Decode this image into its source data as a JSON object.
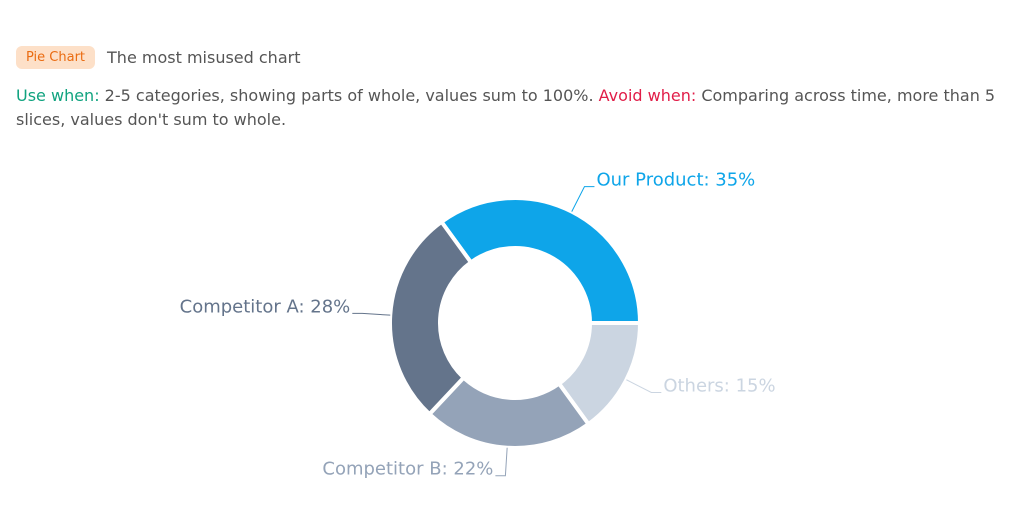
{
  "header": {
    "badge": "Pie Chart",
    "subtitle": "The most misused chart"
  },
  "description": {
    "use_label": "Use when:",
    "use_text": "2-5 categories, showing parts of whole, values sum to 100%.",
    "avoid_label": "Avoid when:",
    "avoid_text": "Comparing across time, more than 5 slices, values don't sum to whole."
  },
  "chart_data": {
    "type": "donut",
    "values": [
      35,
      15,
      22,
      28
    ],
    "value_labels": [
      "Our Product: 35%",
      "Others: 15%",
      "Competitor B: 22%",
      "Competitor A: 28%"
    ],
    "colors": [
      "#0ea5e9",
      "#cbd5e1",
      "#94a3b8",
      "#64748b"
    ]
  }
}
